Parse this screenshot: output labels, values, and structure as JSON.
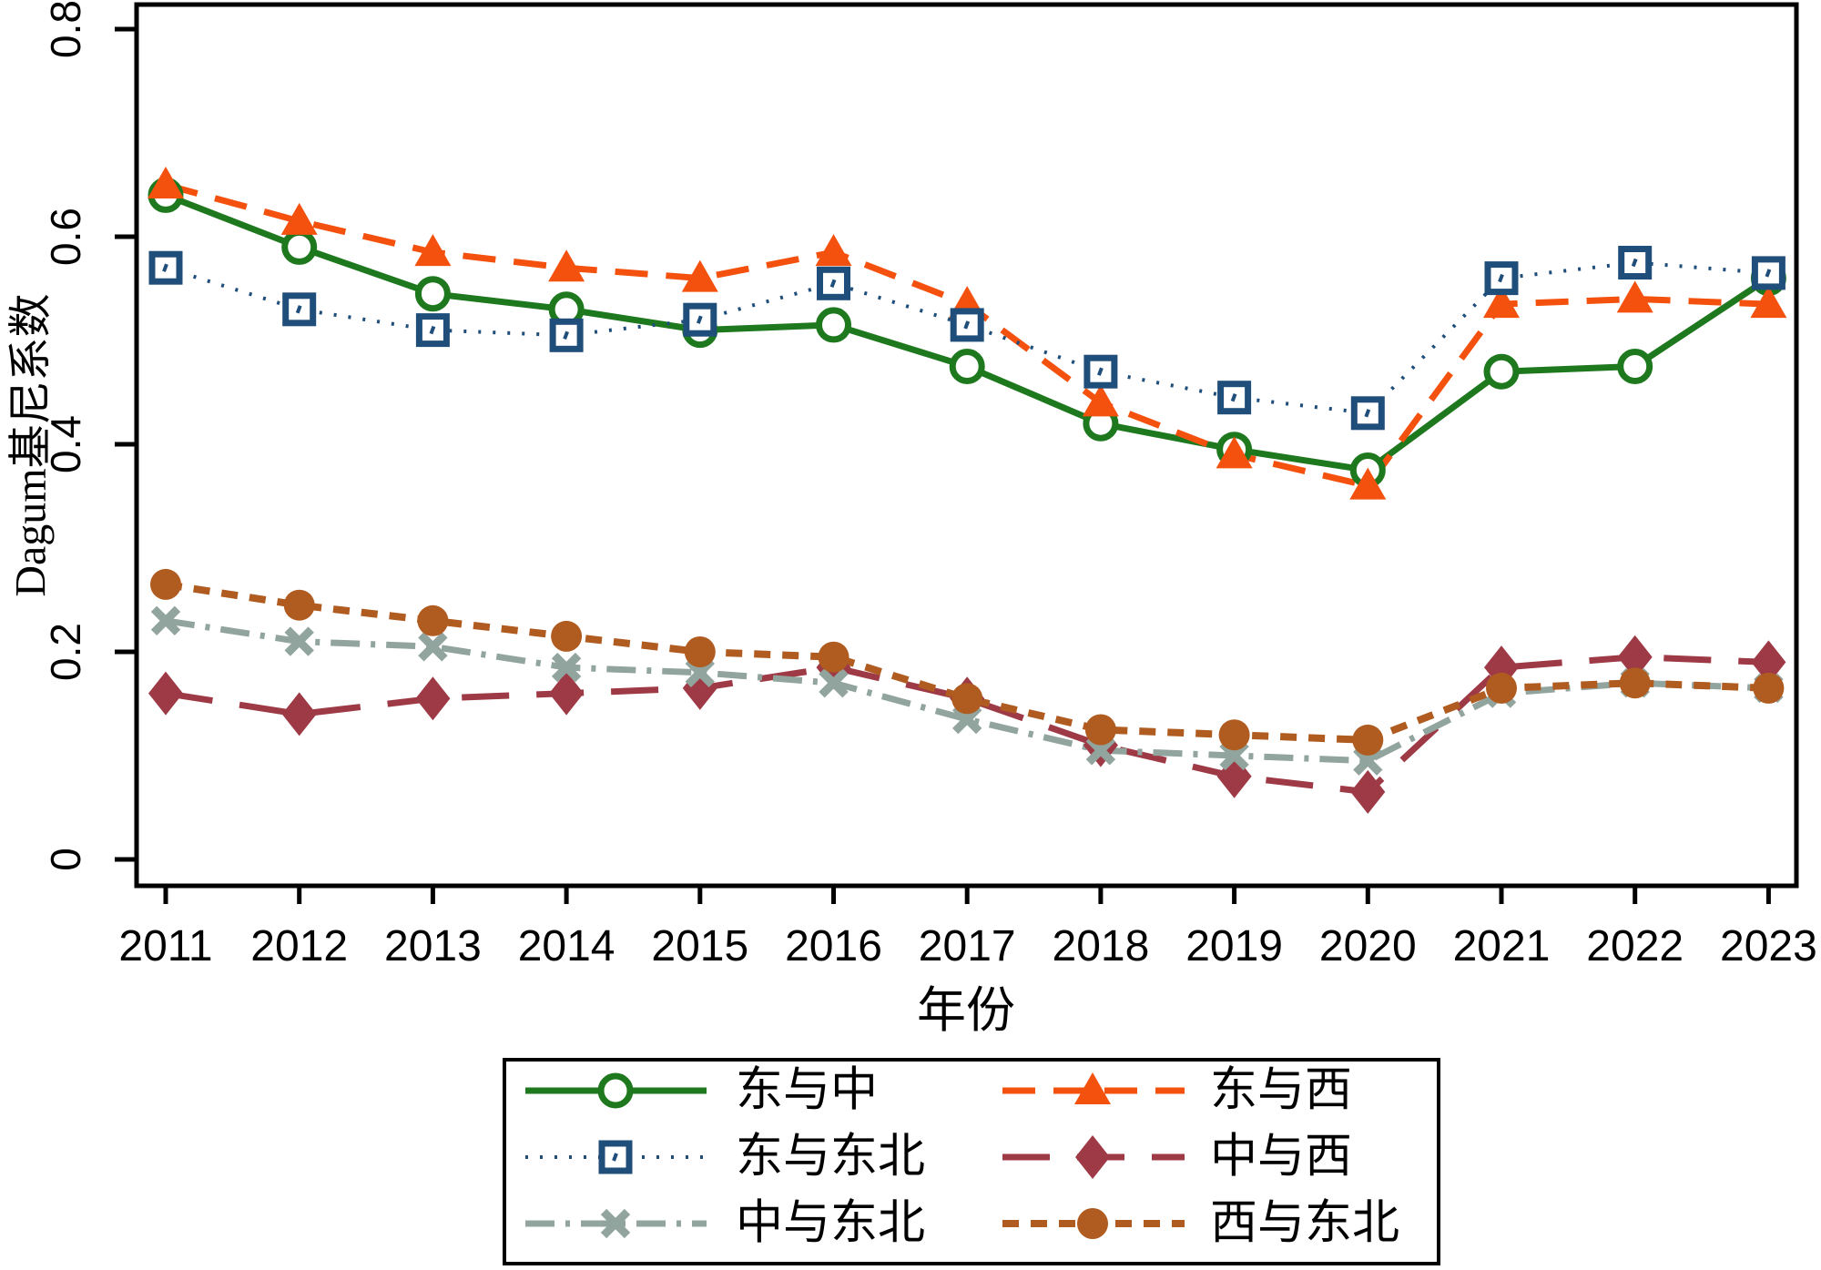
{
  "chart_data": {
    "type": "line",
    "title": "",
    "xlabel": "年份",
    "ylabel": "Dagum基尼系数",
    "x": [
      2011,
      2012,
      2013,
      2014,
      2015,
      2016,
      2017,
      2018,
      2019,
      2020,
      2021,
      2022,
      2023
    ],
    "xtick_labels": [
      "2011",
      "2012",
      "2013",
      "2014",
      "2015",
      "2016",
      "2017",
      "2018",
      "2019",
      "2020",
      "2021",
      "2022",
      "2023"
    ],
    "ylim": [
      0,
      0.8
    ],
    "yticks": [
      0,
      0.2,
      0.4,
      0.6,
      0.8
    ],
    "ytick_labels": [
      "0",
      "0.2",
      "0.4",
      "0.6",
      "0.8"
    ],
    "grid": false,
    "legend_position": "bottom",
    "series": [
      {
        "key": "east-central",
        "name": "东与中",
        "color": "#1e781e",
        "line": "solid",
        "marker": "circle-open",
        "values": [
          0.64,
          0.59,
          0.545,
          0.53,
          0.51,
          0.515,
          0.475,
          0.42,
          0.395,
          0.375,
          0.47,
          0.475,
          0.56
        ]
      },
      {
        "key": "east-west",
        "name": "东与西",
        "color": "#f4510e",
        "line": "dash",
        "marker": "triangle",
        "values": [
          0.65,
          0.615,
          0.585,
          0.57,
          0.56,
          0.585,
          0.535,
          0.44,
          0.39,
          0.36,
          0.535,
          0.54,
          0.535
        ]
      },
      {
        "key": "east-northeast",
        "name": "东与东北",
        "color": "#1f4e7a",
        "line": "dot",
        "marker": "square-open",
        "values": [
          0.57,
          0.53,
          0.51,
          0.505,
          0.52,
          0.555,
          0.515,
          0.47,
          0.445,
          0.43,
          0.56,
          0.575,
          0.565
        ]
      },
      {
        "key": "central-west",
        "name": "中与西",
        "color": "#9e3a46",
        "line": "long-dash",
        "marker": "diamond",
        "values": [
          0.16,
          0.14,
          0.155,
          0.16,
          0.165,
          0.185,
          0.155,
          0.11,
          0.08,
          0.065,
          0.185,
          0.195,
          0.19
        ]
      },
      {
        "key": "central-northeast",
        "name": "中与东北",
        "color": "#91a49d",
        "line": "dash-dot",
        "marker": "x",
        "values": [
          0.23,
          0.21,
          0.205,
          0.185,
          0.18,
          0.17,
          0.135,
          0.105,
          0.1,
          0.095,
          0.16,
          0.17,
          0.165
        ]
      },
      {
        "key": "west-northeast",
        "name": "西与东北",
        "color": "#b05b1f",
        "line": "short-dash",
        "marker": "circle",
        "values": [
          0.265,
          0.245,
          0.23,
          0.215,
          0.2,
          0.195,
          0.155,
          0.125,
          0.12,
          0.115,
          0.165,
          0.17,
          0.165
        ]
      }
    ],
    "legend_rows": [
      [
        "east-central",
        "east-west"
      ],
      [
        "east-northeast",
        "central-west"
      ],
      [
        "central-northeast",
        "west-northeast"
      ]
    ]
  }
}
